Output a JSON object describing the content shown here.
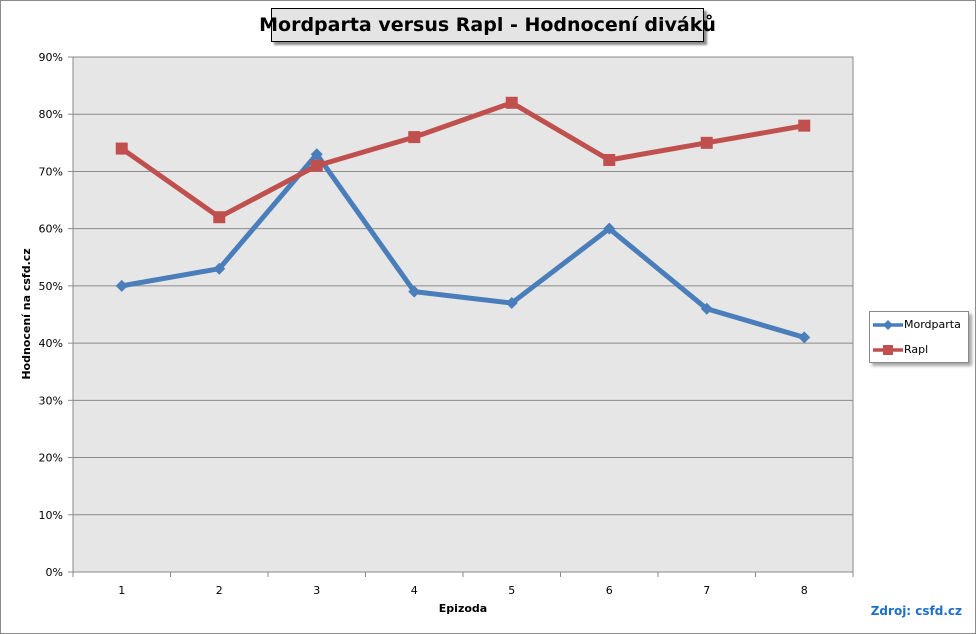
{
  "chart_data": {
    "type": "line",
    "title": "Mordparta versus Rapl - Hodnocení diváků",
    "xlabel": "Epizoda",
    "ylabel": "Hodnocení na csfd.cz",
    "categories": [
      "1",
      "2",
      "3",
      "4",
      "5",
      "6",
      "7",
      "8"
    ],
    "y_ticks": [
      "0%",
      "10%",
      "20%",
      "30%",
      "40%",
      "50%",
      "60%",
      "70%",
      "80%",
      "90%"
    ],
    "ylim": [
      0,
      90
    ],
    "grid": true,
    "legend_position": "right",
    "series": [
      {
        "name": "Mordparta",
        "values": [
          50,
          53,
          73,
          49,
          47,
          60,
          46,
          41
        ],
        "color": "#4a7ebb",
        "marker": "diamond"
      },
      {
        "name": "Rapl",
        "values": [
          74,
          62,
          71,
          76,
          82,
          72,
          75,
          78
        ],
        "color": "#c0504d",
        "marker": "square"
      }
    ],
    "source": "Zdroj: csfd.cz"
  }
}
